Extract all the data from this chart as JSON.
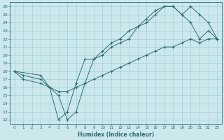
{
  "xlabel": "Humidex (Indice chaleur)",
  "bg_color": "#cce8ec",
  "line_color": "#2d6e6e",
  "grid_color": "#99cccc",
  "xlim": [
    -0.5,
    23.5
  ],
  "ylim": [
    11.5,
    26.5
  ],
  "xticks": [
    0,
    1,
    2,
    3,
    4,
    5,
    6,
    7,
    8,
    9,
    10,
    11,
    12,
    13,
    14,
    15,
    16,
    17,
    18,
    19,
    20,
    21,
    22,
    23
  ],
  "yticks": [
    12,
    13,
    14,
    15,
    16,
    17,
    18,
    19,
    20,
    21,
    22,
    23,
    24,
    25,
    26
  ],
  "series1_x": [
    0,
    1,
    3,
    4,
    5,
    6,
    7,
    8,
    9,
    10,
    11,
    12,
    13,
    14,
    15,
    16,
    17,
    18,
    19,
    20,
    21,
    22,
    23
  ],
  "series1_y": [
    18,
    17,
    16.5,
    16,
    12,
    13,
    16.5,
    19.5,
    19.5,
    20,
    21,
    21.5,
    22,
    23.5,
    24,
    25,
    26,
    26,
    25,
    24,
    22,
    23,
    22
  ],
  "series2_x": [
    0,
    3,
    4,
    5,
    6,
    7,
    8,
    9,
    10,
    11,
    12,
    13,
    14,
    15,
    16,
    17,
    18,
    19,
    20,
    21,
    22,
    23
  ],
  "series2_y": [
    18,
    17.5,
    16,
    15,
    12,
    13,
    16.5,
    19.5,
    20.5,
    21.5,
    22,
    23,
    23.5,
    24.5,
    25.5,
    26,
    26,
    25,
    26,
    25,
    24,
    22
  ],
  "series3_x": [
    0,
    1,
    3,
    4,
    5,
    6,
    7,
    8,
    9,
    10,
    11,
    12,
    13,
    14,
    15,
    16,
    17,
    18,
    19,
    20,
    21,
    22,
    23
  ],
  "series3_y": [
    18,
    17.5,
    17,
    16,
    15.5,
    15.5,
    16,
    16.5,
    17,
    17.5,
    18,
    18.5,
    19,
    19.5,
    20,
    20.5,
    21,
    21,
    21.5,
    22,
    21.5,
    22,
    22
  ]
}
